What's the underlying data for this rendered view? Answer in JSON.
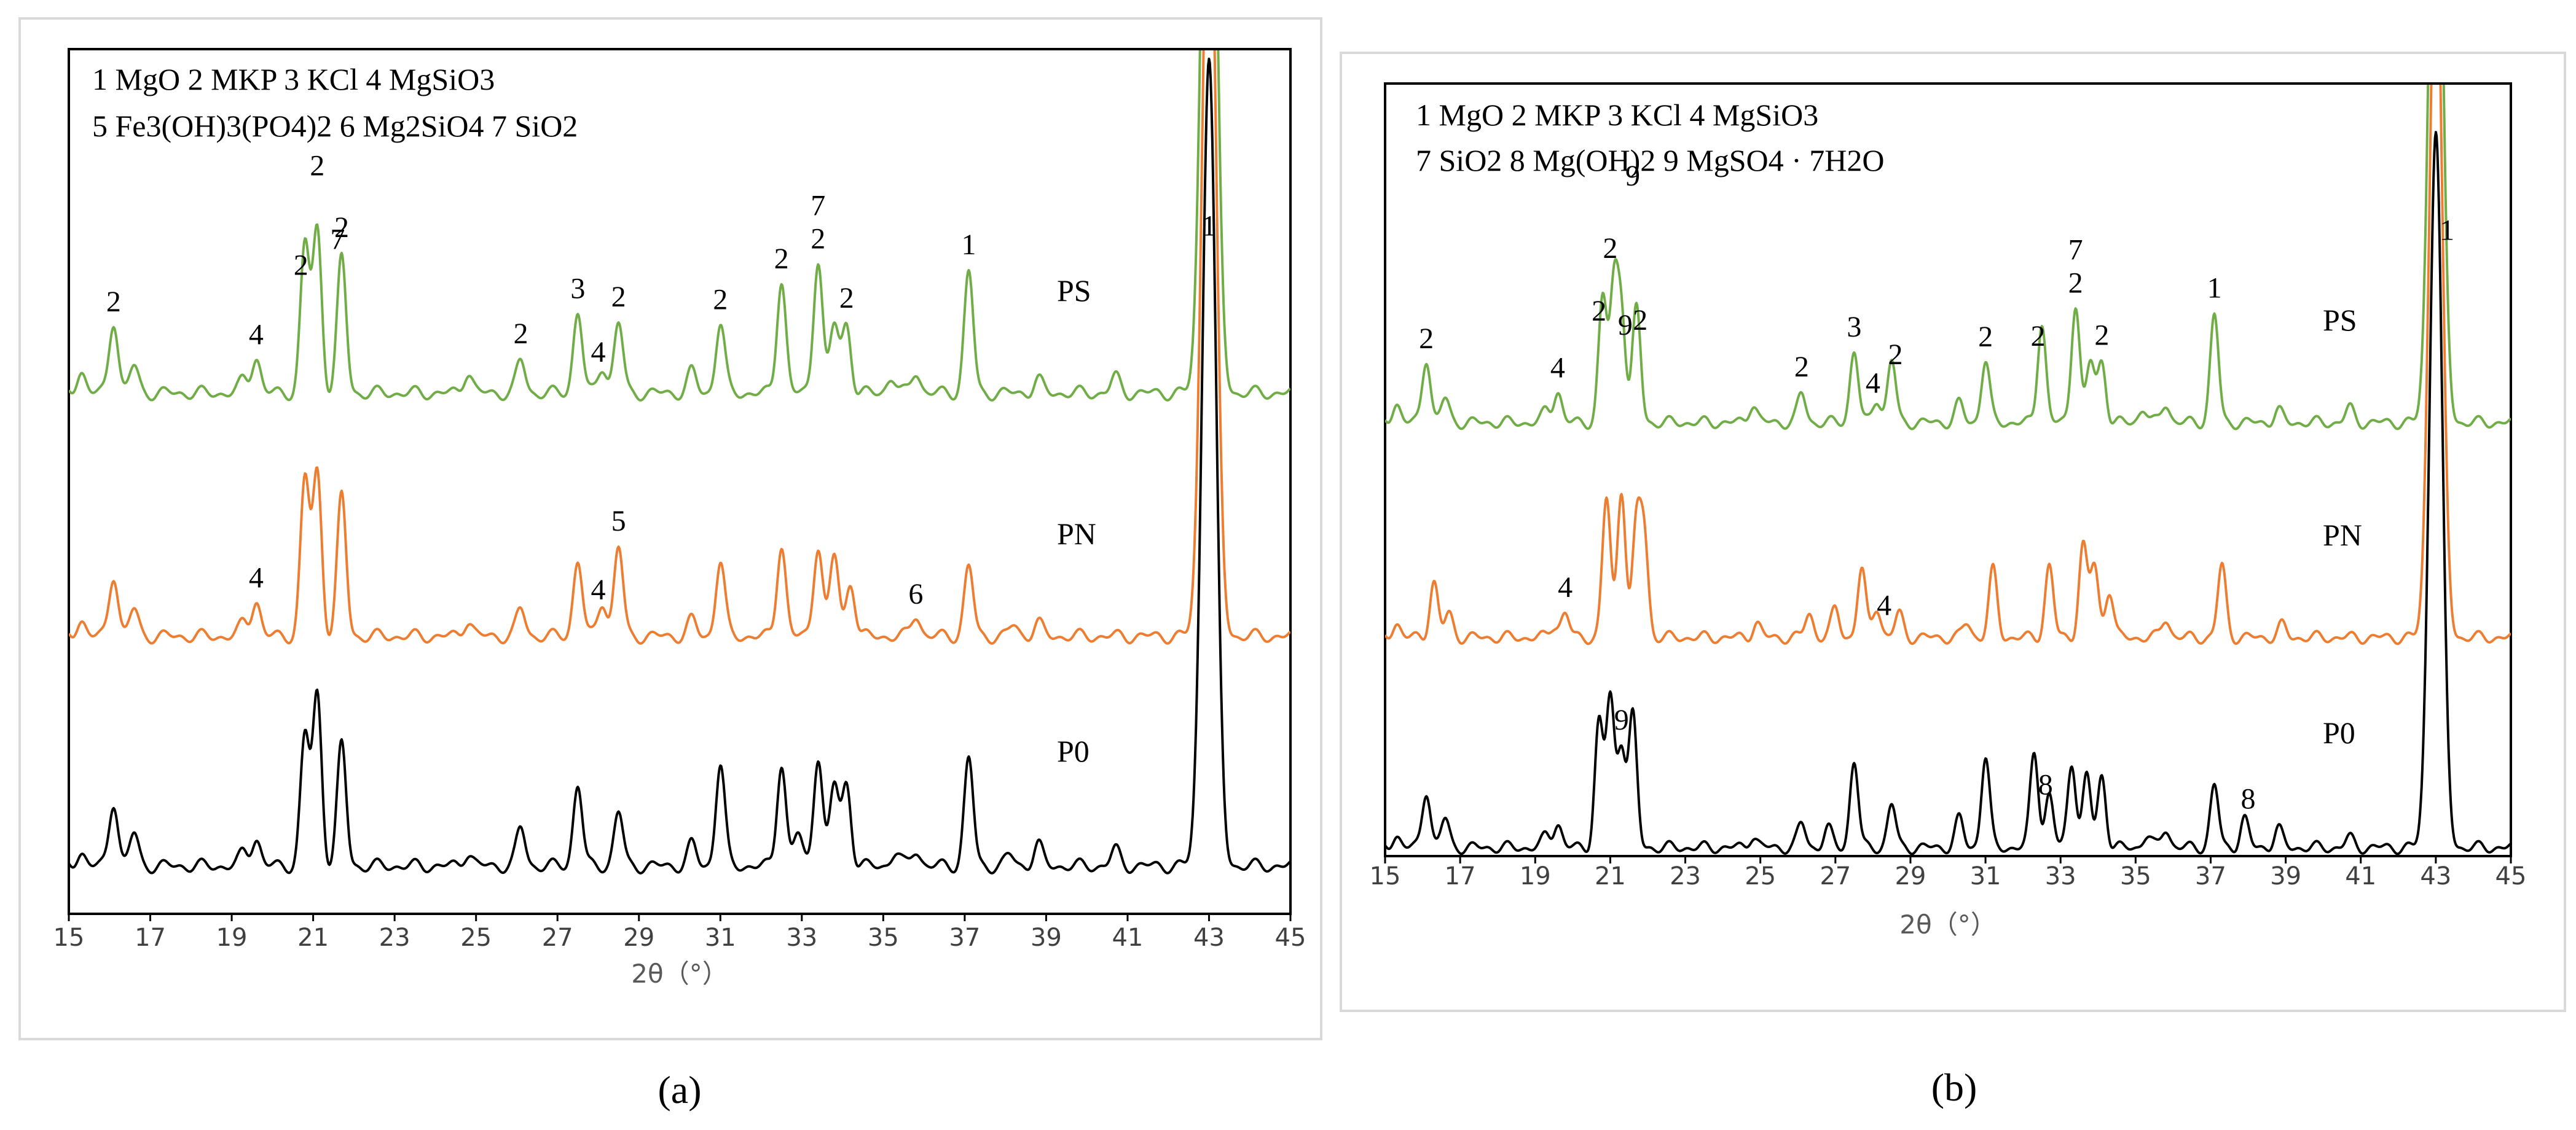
{
  "chart_data": [
    {
      "id": "a",
      "type": "line",
      "caption": "(a)",
      "xlabel": "2θ（°）",
      "xlim": [
        15,
        45
      ],
      "xticks": [
        "15",
        "17",
        "19",
        "21",
        "23",
        "25",
        "27",
        "29",
        "31",
        "33",
        "35",
        "37",
        "39",
        "41",
        "43",
        "45"
      ],
      "legend": [
        "1 MgO    2 MKP    3 KCl      4 MgSiO3",
        "5 Fe3(OH)3(PO4)2  6 Mg2SiO4   7 SiO2"
      ],
      "series": [
        {
          "name": "PS",
          "color": "#70ad47",
          "base": 0.8,
          "peaks": [
            [
              15.3,
              0.08
            ],
            [
              16.1,
              0.27
            ],
            [
              16.6,
              0.1
            ],
            [
              19.3,
              0.05
            ],
            [
              19.6,
              0.13
            ],
            [
              20.8,
              0.55
            ],
            [
              21.1,
              0.6
            ],
            [
              21.7,
              0.5
            ],
            [
              24.8,
              0.08
            ],
            [
              26.1,
              0.12
            ],
            [
              27.5,
              0.3
            ],
            [
              28.1,
              0.1
            ],
            [
              28.5,
              0.26
            ],
            [
              30.3,
              0.08
            ],
            [
              31.0,
              0.26
            ],
            [
              32.5,
              0.42
            ],
            [
              33.4,
              0.5
            ],
            [
              33.8,
              0.25
            ],
            [
              34.1,
              0.25
            ],
            [
              35.2,
              0.06
            ],
            [
              35.8,
              0.08
            ],
            [
              37.1,
              0.45
            ],
            [
              38.8,
              0.05
            ],
            [
              40.7,
              0.06
            ],
            [
              43.0,
              3.0
            ]
          ]
        },
        {
          "name": "PN",
          "color": "#ed7d31",
          "base": 0.42,
          "peaks": [
            [
              15.3,
              0.06
            ],
            [
              16.1,
              0.23
            ],
            [
              16.6,
              0.1
            ],
            [
              19.3,
              0.05
            ],
            [
              19.6,
              0.13
            ],
            [
              20.8,
              0.58
            ],
            [
              21.1,
              0.6
            ],
            [
              21.7,
              0.52
            ],
            [
              24.8,
              0.06
            ],
            [
              26.1,
              0.1
            ],
            [
              27.5,
              0.28
            ],
            [
              28.1,
              0.13
            ],
            [
              28.5,
              0.33
            ],
            [
              30.3,
              0.06
            ],
            [
              31.0,
              0.28
            ],
            [
              32.5,
              0.34
            ],
            [
              33.4,
              0.34
            ],
            [
              33.8,
              0.3
            ],
            [
              34.2,
              0.2
            ],
            [
              35.8,
              0.08
            ],
            [
              37.1,
              0.26
            ],
            [
              38.2,
              0.04
            ],
            [
              38.8,
              0.05
            ],
            [
              43.0,
              3.0
            ]
          ]
        },
        {
          "name": "P0",
          "color": "#000000",
          "base": 0.0,
          "peaks": [
            [
              15.3,
              0.05
            ],
            [
              16.1,
              0.24
            ],
            [
              16.6,
              0.12
            ],
            [
              19.3,
              0.05
            ],
            [
              19.6,
              0.1
            ],
            [
              20.8,
              0.48
            ],
            [
              21.1,
              0.63
            ],
            [
              21.7,
              0.45
            ],
            [
              24.8,
              0.05
            ],
            [
              26.1,
              0.14
            ],
            [
              27.5,
              0.3
            ],
            [
              28.5,
              0.2
            ],
            [
              30.3,
              0.08
            ],
            [
              31.0,
              0.38
            ],
            [
              32.5,
              0.38
            ],
            [
              32.9,
              0.12
            ],
            [
              33.4,
              0.41
            ],
            [
              33.8,
              0.3
            ],
            [
              34.1,
              0.3
            ],
            [
              35.3,
              0.05
            ],
            [
              35.8,
              0.06
            ],
            [
              37.1,
              0.4
            ],
            [
              38.1,
              0.04
            ],
            [
              38.8,
              0.08
            ],
            [
              40.7,
              0.06
            ],
            [
              43.0,
              3.0
            ]
          ]
        }
      ],
      "peak_labels": [
        {
          "text": "2",
          "x": 16.1,
          "series": "PS"
        },
        {
          "text": "4",
          "x": 19.6,
          "series": "PS"
        },
        {
          "text": "2",
          "x": 20.7,
          "series": "PS"
        },
        {
          "text": "2",
          "x": 21.1,
          "series": "PS",
          "dy": 1
        },
        {
          "text": "7",
          "x": 21.6,
          "series": "PS",
          "dy": 1
        },
        {
          "text": "2",
          "x": 21.7,
          "series": "PS"
        },
        {
          "text": "2",
          "x": 26.1,
          "series": "PS"
        },
        {
          "text": "3",
          "x": 27.5,
          "series": "PS"
        },
        {
          "text": "4",
          "x": 28.0,
          "series": "PS"
        },
        {
          "text": "2",
          "x": 28.5,
          "series": "PS"
        },
        {
          "text": "2",
          "x": 31.0,
          "series": "PS"
        },
        {
          "text": "2",
          "x": 32.5,
          "series": "PS"
        },
        {
          "text": "7",
          "x": 33.4,
          "series": "PS",
          "dy": 1
        },
        {
          "text": "2",
          "x": 33.4,
          "series": "PS"
        },
        {
          "text": "2",
          "x": 34.1,
          "series": "PS"
        },
        {
          "text": "1",
          "x": 37.1,
          "series": "PS"
        },
        {
          "text": "1",
          "x": 43.0,
          "series": "PS",
          "fixed": 0.98
        },
        {
          "text": "4",
          "x": 19.6,
          "series": "PN"
        },
        {
          "text": "4",
          "x": 28.0,
          "series": "PN"
        },
        {
          "text": "5",
          "x": 28.5,
          "series": "PN"
        },
        {
          "text": "6",
          "x": 35.8,
          "series": "PN"
        }
      ],
      "series_labels": [
        {
          "text": "PS",
          "series": "PS"
        },
        {
          "text": "PN",
          "series": "PN"
        },
        {
          "text": "P0",
          "series": "P0"
        }
      ]
    },
    {
      "id": "b",
      "type": "line",
      "caption": "(b)",
      "xlabel": "2θ（°）",
      "xlim": [
        15,
        45
      ],
      "xticks": [
        "15",
        "17",
        "19",
        "21",
        "23",
        "25",
        "27",
        "29",
        "31",
        "33",
        "35",
        "37",
        "39",
        "41",
        "43",
        "45"
      ],
      "legend": [
        "1 MgO     2 MKP    3 KCl      4 MgSiO3",
        "7 SiO2   8 Mg(OH)2   9 MgSO4 · 7H2O"
      ],
      "series": [
        {
          "name": "PS",
          "color": "#70ad47",
          "base": 0.8,
          "peaks": [
            [
              15.3,
              0.08
            ],
            [
              16.1,
              0.27
            ],
            [
              16.6,
              0.1
            ],
            [
              19.3,
              0.05
            ],
            [
              19.6,
              0.13
            ],
            [
              20.8,
              0.52
            ],
            [
              21.1,
              0.55
            ],
            [
              21.3,
              0.45
            ],
            [
              21.7,
              0.48
            ],
            [
              24.8,
              0.08
            ],
            [
              26.1,
              0.12
            ],
            [
              27.5,
              0.3
            ],
            [
              28.1,
              0.1
            ],
            [
              28.5,
              0.26
            ],
            [
              30.3,
              0.08
            ],
            [
              31.0,
              0.26
            ],
            [
              32.5,
              0.42
            ],
            [
              33.4,
              0.5
            ],
            [
              33.8,
              0.25
            ],
            [
              34.1,
              0.25
            ],
            [
              35.2,
              0.06
            ],
            [
              35.8,
              0.08
            ],
            [
              37.1,
              0.45
            ],
            [
              38.8,
              0.05
            ],
            [
              40.7,
              0.06
            ],
            [
              43.0,
              3.0
            ]
          ]
        },
        {
          "name": "PN",
          "color": "#ed7d31",
          "base": 0.42,
          "peaks": [
            [
              15.3,
              0.06
            ],
            [
              16.3,
              0.23
            ],
            [
              16.7,
              0.1
            ],
            [
              19.5,
              0.05
            ],
            [
              19.8,
              0.1
            ],
            [
              20.9,
              0.58
            ],
            [
              21.3,
              0.62
            ],
            [
              21.7,
              0.45
            ],
            [
              21.9,
              0.42
            ],
            [
              24.9,
              0.06
            ],
            [
              26.3,
              0.1
            ],
            [
              27.0,
              0.12
            ],
            [
              27.7,
              0.28
            ],
            [
              28.1,
              0.13
            ],
            [
              28.7,
              0.1
            ],
            [
              30.5,
              0.06
            ],
            [
              31.2,
              0.28
            ],
            [
              32.7,
              0.3
            ],
            [
              33.6,
              0.38
            ],
            [
              33.9,
              0.3
            ],
            [
              34.3,
              0.2
            ],
            [
              35.8,
              0.08
            ],
            [
              37.3,
              0.3
            ],
            [
              38.9,
              0.05
            ],
            [
              43.0,
              3.0
            ]
          ]
        },
        {
          "name": "P0",
          "color": "#000000",
          "base": 0.0,
          "peaks": [
            [
              15.3,
              0.05
            ],
            [
              16.1,
              0.24
            ],
            [
              16.6,
              0.12
            ],
            [
              19.3,
              0.05
            ],
            [
              19.6,
              0.1
            ],
            [
              20.7,
              0.52
            ],
            [
              21.0,
              0.62
            ],
            [
              21.3,
              0.42
            ],
            [
              21.6,
              0.55
            ],
            [
              24.8,
              0.05
            ],
            [
              26.1,
              0.1
            ],
            [
              26.8,
              0.08
            ],
            [
              27.5,
              0.36
            ],
            [
              28.5,
              0.18
            ],
            [
              30.3,
              0.12
            ],
            [
              31.0,
              0.38
            ],
            [
              32.3,
              0.4
            ],
            [
              32.7,
              0.22
            ],
            [
              33.3,
              0.36
            ],
            [
              33.7,
              0.3
            ],
            [
              34.1,
              0.3
            ],
            [
              35.3,
              0.05
            ],
            [
              35.8,
              0.08
            ],
            [
              37.1,
              0.26
            ],
            [
              37.9,
              0.12
            ],
            [
              38.8,
              0.08
            ],
            [
              40.7,
              0.04
            ],
            [
              43.0,
              3.0
            ]
          ]
        }
      ],
      "peak_labels": [
        {
          "text": "2",
          "x": 16.1,
          "series": "PS"
        },
        {
          "text": "4",
          "x": 19.6,
          "series": "PS"
        },
        {
          "text": "2",
          "x": 20.7,
          "series": "PS"
        },
        {
          "text": "2",
          "x": 21.0,
          "series": "PS",
          "dy": 1
        },
        {
          "text": "9",
          "x": 21.4,
          "series": "PS"
        },
        {
          "text": "2",
          "x": 21.8,
          "series": "PS"
        },
        {
          "text": "2",
          "x": 26.1,
          "series": "PS"
        },
        {
          "text": "3",
          "x": 27.5,
          "series": "PS"
        },
        {
          "text": "4",
          "x": 28.0,
          "series": "PS"
        },
        {
          "text": "2",
          "x": 28.6,
          "series": "PS"
        },
        {
          "text": "2",
          "x": 31.0,
          "series": "PS"
        },
        {
          "text": "2",
          "x": 32.4,
          "series": "PS"
        },
        {
          "text": "7",
          "x": 33.4,
          "series": "PS",
          "dy": 1
        },
        {
          "text": "2",
          "x": 33.4,
          "series": "PS"
        },
        {
          "text": "2",
          "x": 34.1,
          "series": "PS"
        },
        {
          "text": "1",
          "x": 37.1,
          "series": "PS"
        },
        {
          "text": "1",
          "x": 43.3,
          "series": "PS",
          "fixed": 0.92
        },
        {
          "text": "9",
          "x": 21.6,
          "series": "PN",
          "fixed": 0.6
        },
        {
          "text": "4",
          "x": 19.8,
          "series": "PN"
        },
        {
          "text": "4",
          "x": 28.3,
          "series": "PN"
        },
        {
          "text": "9",
          "x": 21.3,
          "series": "P0"
        },
        {
          "text": "8",
          "x": 32.6,
          "series": "P0"
        },
        {
          "text": "8",
          "x": 38.0,
          "series": "P0"
        }
      ],
      "series_labels": [
        {
          "text": "PS",
          "series": "PS"
        },
        {
          "text": "PN",
          "series": "PN"
        },
        {
          "text": "P0",
          "series": "P0"
        }
      ]
    }
  ]
}
